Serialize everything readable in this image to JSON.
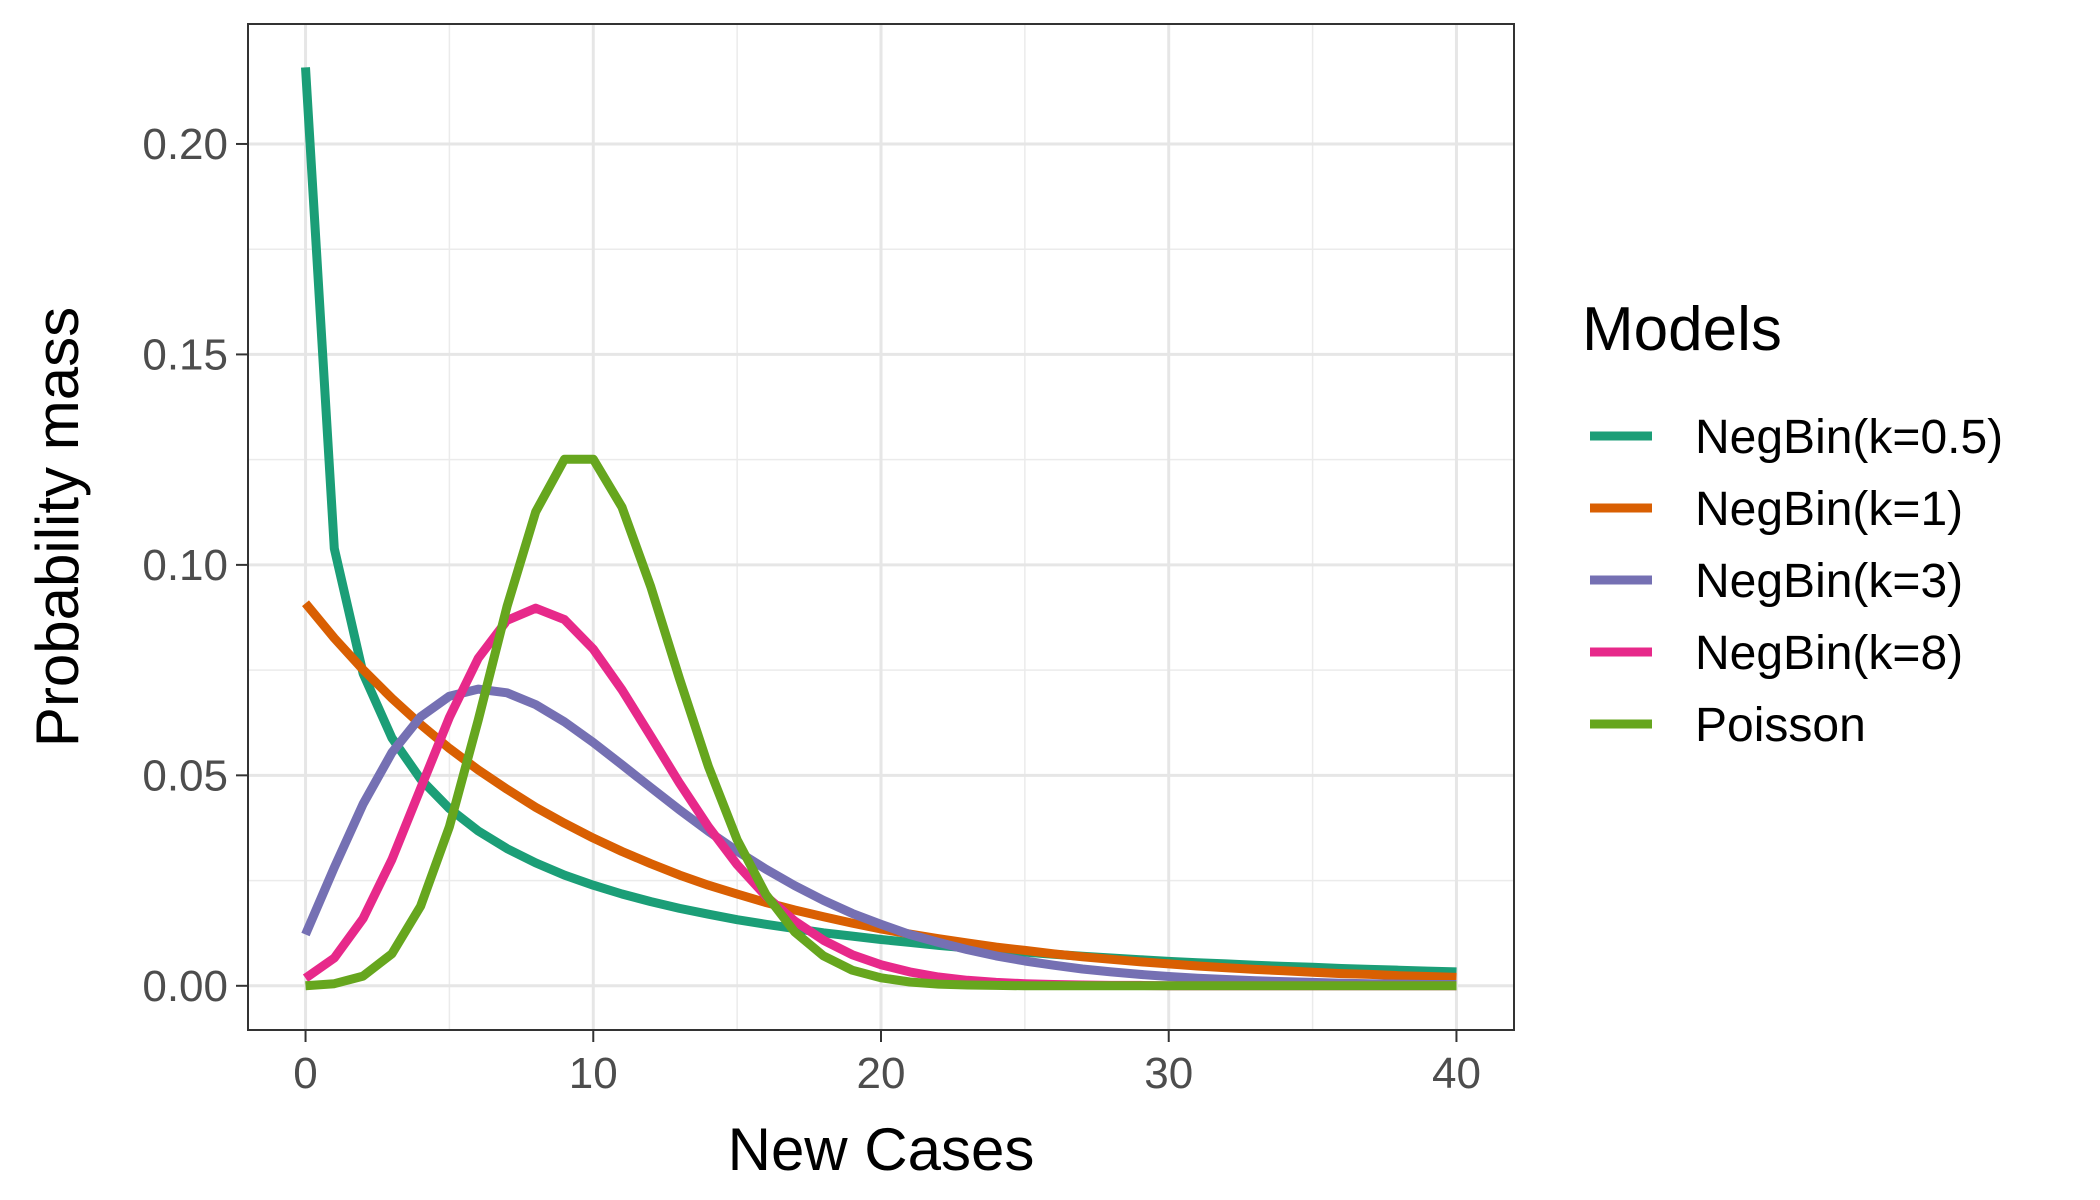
{
  "chart_data": {
    "type": "line",
    "title": "",
    "xlabel": "New Cases",
    "ylabel": "Probability mass",
    "xlim": [
      -2,
      42
    ],
    "ylim": [
      -0.0105,
      0.2285
    ],
    "xticks": [
      0,
      10,
      20,
      30,
      40
    ],
    "xtick_labels": [
      "0",
      "10",
      "20",
      "30",
      "40"
    ],
    "yticks": [
      0,
      0.05,
      0.1,
      0.15,
      0.2
    ],
    "ytick_labels": [
      "0.00",
      "0.05",
      "0.10",
      "0.15",
      "0.20"
    ],
    "grid": true,
    "legend": {
      "title": "Models",
      "position": "right"
    },
    "x": [
      0,
      1,
      2,
      3,
      4,
      5,
      6,
      7,
      8,
      9,
      10,
      11,
      12,
      13,
      14,
      15,
      16,
      17,
      18,
      19,
      20,
      21,
      22,
      23,
      24,
      25,
      26,
      27,
      28,
      29,
      30,
      31,
      32,
      33,
      34,
      35,
      36,
      37,
      38,
      39,
      40
    ],
    "series": [
      {
        "name": "NegBin(k=0.5)",
        "color": "#1b9e77",
        "values": [
          0.2182,
          0.1039,
          0.0742,
          0.0589,
          0.0491,
          0.0421,
          0.0368,
          0.0326,
          0.0292,
          0.0263,
          0.0239,
          0.0218,
          0.02,
          0.0184,
          0.017,
          0.0157,
          0.0146,
          0.0136,
          0.0126,
          0.0118,
          0.011,
          0.0103,
          0.0096,
          0.009,
          0.0085,
          0.008,
          0.0075,
          0.007,
          0.0066,
          0.0062,
          0.0058,
          0.0055,
          0.0052,
          0.0049,
          0.0046,
          0.0044,
          0.0041,
          0.0039,
          0.0037,
          0.0035,
          0.0033
        ]
      },
      {
        "name": "NegBin(k=1)",
        "color": "#d95f02",
        "values": [
          0.0909,
          0.0826,
          0.0751,
          0.0683,
          0.0621,
          0.0564,
          0.0513,
          0.0467,
          0.0424,
          0.0386,
          0.0351,
          0.0319,
          0.029,
          0.0263,
          0.0239,
          0.0218,
          0.0198,
          0.018,
          0.0164,
          0.0149,
          0.0135,
          0.0123,
          0.0112,
          0.0102,
          0.0092,
          0.0084,
          0.0076,
          0.0069,
          0.0063,
          0.0057,
          0.0052,
          0.0047,
          0.0043,
          0.0039,
          0.0036,
          0.0032,
          0.0029,
          0.0027,
          0.0024,
          0.0022,
          0.002
        ]
      },
      {
        "name": "NegBin(k=3)",
        "color": "#7570b3",
        "values": [
          0.0122,
          0.0281,
          0.0432,
          0.0554,
          0.0639,
          0.0688,
          0.0705,
          0.0696,
          0.0668,
          0.0627,
          0.0578,
          0.0525,
          0.0471,
          0.0418,
          0.0367,
          0.032,
          0.0277,
          0.0238,
          0.0203,
          0.0172,
          0.0146,
          0.0122,
          0.0103,
          0.0086,
          0.0071,
          0.0059,
          0.0049,
          0.004,
          0.0033,
          0.0027,
          0.0022,
          0.0018,
          0.0015,
          0.0012,
          0.001,
          0.0008,
          0.0006,
          0.0005,
          0.0004,
          0.0003,
          0.0003
        ]
      },
      {
        "name": "NegBin(k=8)",
        "color": "#e7298a",
        "values": [
          0.0018,
          0.0066,
          0.016,
          0.03,
          0.0469,
          0.0638,
          0.0778,
          0.0868,
          0.0897,
          0.087,
          0.08,
          0.0703,
          0.0593,
          0.0481,
          0.0378,
          0.0288,
          0.0213,
          0.0154,
          0.0108,
          0.0074,
          0.005,
          0.0033,
          0.0021,
          0.0013,
          0.0008,
          0.0005,
          0.0003,
          0.0002,
          0.0001,
          0.0001,
          0.0,
          0.0,
          0.0,
          0.0,
          0.0,
          0.0,
          0.0,
          0.0,
          0.0,
          0.0,
          0.0
        ]
      },
      {
        "name": "Poisson",
        "color": "#66a61e",
        "values": [
          0.0,
          0.0005,
          0.0023,
          0.0076,
          0.0189,
          0.0378,
          0.0631,
          0.0901,
          0.1126,
          0.1251,
          0.1251,
          0.1137,
          0.0948,
          0.0729,
          0.0521,
          0.0347,
          0.0217,
          0.0128,
          0.0071,
          0.0037,
          0.0019,
          0.0009,
          0.0004,
          0.0002,
          0.0001,
          0.0,
          0.0,
          0.0,
          0.0,
          0.0,
          0.0,
          0.0,
          0.0,
          0.0,
          0.0,
          0.0,
          0.0,
          0.0,
          0.0,
          0.0,
          0.0
        ]
      }
    ]
  }
}
